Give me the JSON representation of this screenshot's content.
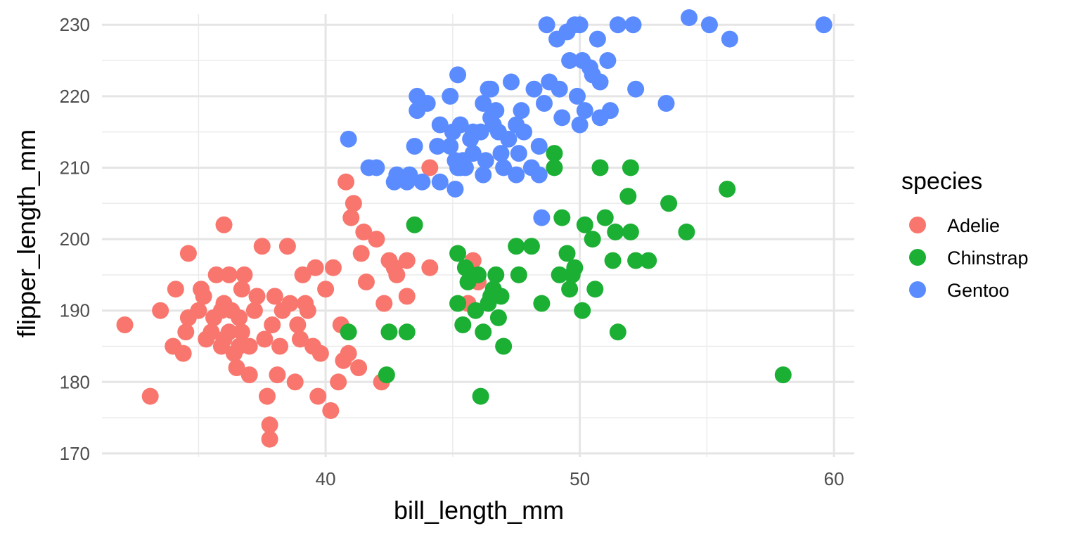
{
  "chart_data": {
    "type": "scatter",
    "title": "",
    "xlabel": "bill_length_mm",
    "ylabel": "flipper_length_mm",
    "xlim": [
      31.2,
      60.8
    ],
    "ylim": [
      169.5,
      231.5
    ],
    "x_ticks": [
      40,
      50,
      60
    ],
    "x_tick_labels": [
      "40",
      "50",
      "60"
    ],
    "y_ticks": [
      170,
      180,
      190,
      200,
      210,
      220,
      230
    ],
    "y_tick_labels": [
      "170",
      "180",
      "190",
      "200",
      "210",
      "220",
      "230"
    ],
    "grid": true,
    "legend": {
      "title": "species",
      "position": "right",
      "entries": [
        "Adelie",
        "Chinstrap",
        "Gentoo"
      ]
    },
    "series": [
      {
        "name": "Adelie",
        "color": "#F8766D",
        "points": [
          [
            32.1,
            188
          ],
          [
            33.1,
            178
          ],
          [
            33.5,
            190
          ],
          [
            34.0,
            185
          ],
          [
            34.1,
            193
          ],
          [
            34.4,
            184
          ],
          [
            34.5,
            187
          ],
          [
            34.6,
            189
          ],
          [
            34.6,
            198
          ],
          [
            35.0,
            190
          ],
          [
            35.1,
            193
          ],
          [
            35.2,
            192
          ],
          [
            35.3,
            186
          ],
          [
            35.5,
            187
          ],
          [
            35.6,
            189
          ],
          [
            35.7,
            195
          ],
          [
            35.9,
            190
          ],
          [
            35.9,
            185
          ],
          [
            36.0,
            191
          ],
          [
            36.0,
            186
          ],
          [
            36.0,
            202
          ],
          [
            36.2,
            187
          ],
          [
            36.2,
            195
          ],
          [
            36.3,
            190
          ],
          [
            36.4,
            184
          ],
          [
            36.5,
            182
          ],
          [
            36.6,
            185
          ],
          [
            36.6,
            189
          ],
          [
            36.7,
            187
          ],
          [
            36.7,
            193
          ],
          [
            36.8,
            195
          ],
          [
            37.0,
            185
          ],
          [
            37.0,
            181
          ],
          [
            37.2,
            190
          ],
          [
            37.3,
            192
          ],
          [
            37.5,
            199
          ],
          [
            37.6,
            186
          ],
          [
            37.7,
            178
          ],
          [
            37.8,
            174
          ],
          [
            37.8,
            172
          ],
          [
            37.9,
            188
          ],
          [
            38.0,
            192
          ],
          [
            38.1,
            181
          ],
          [
            38.2,
            185
          ],
          [
            38.3,
            190
          ],
          [
            38.5,
            199
          ],
          [
            38.6,
            191
          ],
          [
            38.8,
            180
          ],
          [
            38.9,
            188
          ],
          [
            39.0,
            186
          ],
          [
            39.1,
            195
          ],
          [
            39.2,
            191
          ],
          [
            39.3,
            190
          ],
          [
            39.5,
            185
          ],
          [
            39.6,
            196
          ],
          [
            39.7,
            178
          ],
          [
            39.8,
            184
          ],
          [
            40.0,
            193
          ],
          [
            40.2,
            176
          ],
          [
            40.3,
            196
          ],
          [
            40.5,
            180
          ],
          [
            40.6,
            188
          ],
          [
            40.7,
            183
          ],
          [
            40.8,
            208
          ],
          [
            40.9,
            184
          ],
          [
            41.0,
            203
          ],
          [
            41.1,
            205
          ],
          [
            41.3,
            182
          ],
          [
            41.4,
            198
          ],
          [
            41.5,
            201
          ],
          [
            41.6,
            194
          ],
          [
            42.0,
            200
          ],
          [
            42.2,
            180
          ],
          [
            42.3,
            191
          ],
          [
            42.5,
            197
          ],
          [
            42.7,
            196
          ],
          [
            42.8,
            195
          ],
          [
            43.2,
            192
          ],
          [
            43.2,
            197
          ],
          [
            44.1,
            196
          ],
          [
            44.1,
            210
          ],
          [
            45.8,
            197
          ],
          [
            46.0,
            194
          ],
          [
            45.6,
            191
          ]
        ]
      },
      {
        "name": "Chinstrap",
        "color": "#1BAF34",
        "points": [
          [
            40.9,
            187
          ],
          [
            42.4,
            181
          ],
          [
            42.5,
            187
          ],
          [
            43.2,
            187
          ],
          [
            43.5,
            202
          ],
          [
            45.2,
            191
          ],
          [
            45.2,
            198
          ],
          [
            45.4,
            188
          ],
          [
            45.5,
            196
          ],
          [
            45.6,
            194
          ],
          [
            45.7,
            195
          ],
          [
            45.9,
            190
          ],
          [
            46.0,
            195
          ],
          [
            46.1,
            178
          ],
          [
            46.2,
            187
          ],
          [
            46.4,
            191
          ],
          [
            46.5,
            192
          ],
          [
            46.6,
            193
          ],
          [
            46.7,
            195
          ],
          [
            46.8,
            189
          ],
          [
            46.9,
            192
          ],
          [
            47.0,
            185
          ],
          [
            47.5,
            199
          ],
          [
            47.6,
            195
          ],
          [
            48.1,
            199
          ],
          [
            48.5,
            191
          ],
          [
            49.0,
            210
          ],
          [
            49.0,
            212
          ],
          [
            49.2,
            195
          ],
          [
            49.3,
            203
          ],
          [
            49.5,
            198
          ],
          [
            49.6,
            193
          ],
          [
            49.7,
            195
          ],
          [
            49.8,
            196
          ],
          [
            50.1,
            190
          ],
          [
            50.2,
            202
          ],
          [
            50.5,
            200
          ],
          [
            50.6,
            193
          ],
          [
            50.8,
            210
          ],
          [
            51.0,
            203
          ],
          [
            51.3,
            197
          ],
          [
            51.4,
            201
          ],
          [
            51.5,
            187
          ],
          [
            51.9,
            206
          ],
          [
            52.0,
            201
          ],
          [
            52.0,
            210
          ],
          [
            52.2,
            197
          ],
          [
            52.7,
            197
          ],
          [
            53.5,
            205
          ],
          [
            54.2,
            201
          ],
          [
            55.8,
            207
          ],
          [
            58.0,
            181
          ]
        ]
      },
      {
        "name": "Gentoo",
        "color": "#5B8CFF",
        "points": [
          [
            40.9,
            214
          ],
          [
            41.7,
            210
          ],
          [
            42.0,
            210
          ],
          [
            42.7,
            208
          ],
          [
            42.8,
            209
          ],
          [
            43.2,
            208
          ],
          [
            43.3,
            209
          ],
          [
            43.5,
            213
          ],
          [
            43.6,
            218
          ],
          [
            43.8,
            208
          ],
          [
            44.4,
            213
          ],
          [
            44.5,
            216
          ],
          [
            44.9,
            213
          ],
          [
            45.0,
            215
          ],
          [
            45.1,
            211
          ],
          [
            45.2,
            210
          ],
          [
            45.3,
            210
          ],
          [
            45.4,
            211
          ],
          [
            45.5,
            210
          ],
          [
            45.7,
            214
          ],
          [
            45.8,
            215
          ],
          [
            46.1,
            215
          ],
          [
            46.2,
            209
          ],
          [
            46.3,
            211
          ],
          [
            46.4,
            221
          ],
          [
            46.5,
            217
          ],
          [
            46.6,
            216
          ],
          [
            46.8,
            215
          ],
          [
            47.0,
            210
          ],
          [
            47.2,
            214
          ],
          [
            47.3,
            222
          ],
          [
            47.5,
            216
          ],
          [
            47.6,
            212
          ],
          [
            47.8,
            215
          ],
          [
            48.1,
            210
          ],
          [
            48.2,
            221
          ],
          [
            48.4,
            213
          ],
          [
            48.5,
            203
          ],
          [
            48.7,
            230
          ],
          [
            48.8,
            222
          ],
          [
            49.1,
            228
          ],
          [
            49.2,
            221
          ],
          [
            49.5,
            229
          ],
          [
            49.6,
            225
          ],
          [
            49.8,
            230
          ],
          [
            50.0,
            230
          ],
          [
            50.1,
            225
          ],
          [
            50.2,
            218
          ],
          [
            50.4,
            224
          ],
          [
            50.5,
            223
          ],
          [
            50.7,
            228
          ],
          [
            50.8,
            222
          ],
          [
            51.1,
            225
          ],
          [
            51.5,
            230
          ],
          [
            52.1,
            230
          ],
          [
            52.2,
            221
          ],
          [
            54.3,
            231
          ],
          [
            55.1,
            230
          ],
          [
            55.9,
            228
          ],
          [
            59.6,
            230
          ],
          [
            44.0,
            219
          ],
          [
            44.9,
            220
          ],
          [
            45.3,
            216
          ],
          [
            46.2,
            219
          ],
          [
            46.5,
            221
          ],
          [
            48.6,
            219
          ],
          [
            49.3,
            217
          ],
          [
            50.0,
            216
          ],
          [
            51.2,
            218
          ],
          [
            53.4,
            219
          ],
          [
            45.2,
            223
          ],
          [
            43.6,
            220
          ],
          [
            47.7,
            218
          ],
          [
            49.9,
            220
          ],
          [
            50.8,
            217
          ],
          [
            46.9,
            212
          ],
          [
            45.8,
            212
          ],
          [
            48.4,
            209
          ],
          [
            44.5,
            208
          ],
          [
            45.1,
            207
          ],
          [
            47.5,
            209
          ],
          [
            46.7,
            218
          ]
        ]
      }
    ]
  }
}
